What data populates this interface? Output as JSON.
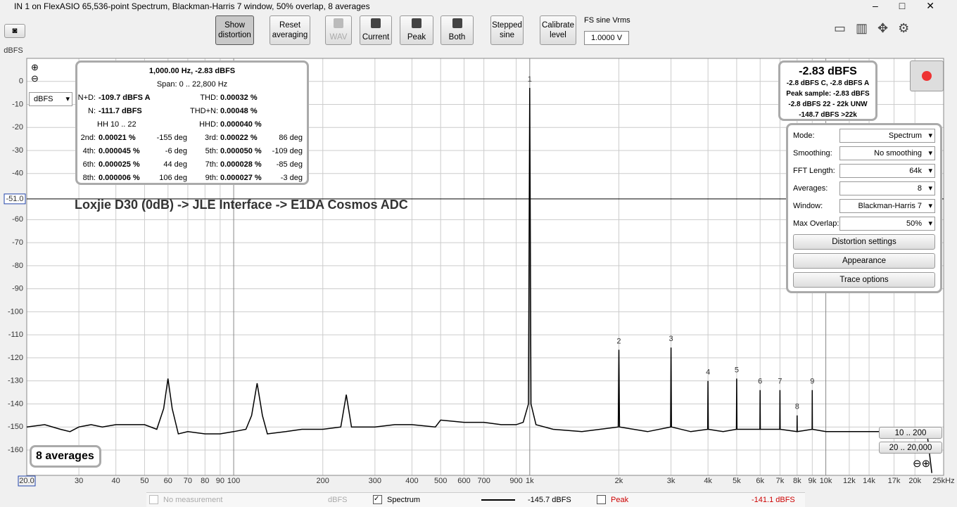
{
  "window": {
    "title": "IN 1 on FlexASIO 65,536-point Spectrum, Blackman-Harris 7 window, 50% overlap, 8 averages"
  },
  "toolbar": {
    "show_distortion": "Show distortion",
    "reset_averaging": "Reset averaging",
    "wav": "WAV",
    "current": "Current",
    "peak": "Peak",
    "both": "Both",
    "stepped_sine": "Stepped sine",
    "calibrate_level": "Calibrate level",
    "fs_label": "FS sine Vrms",
    "fs_value": "1.0000 V"
  },
  "units_dropdown": "dBFS",
  "info": {
    "cursor": "1,000.00 Hz, -2.83 dBFS",
    "span": "Span: 0 .. 22,800 Hz",
    "nd_label": "N+D:",
    "nd_value": "-109.7 dBFS A",
    "thd_label": "THD:",
    "thd_value": "0.00032 %",
    "n_label": "N:",
    "n_value": "-111.7 dBFS",
    "thdn_label": "THD+N:",
    "thdn_value": "0.00048 %",
    "hh_range": "HH 10 .. 22",
    "hhd_label": "HHD:",
    "hhd_value": "0.000040 %",
    "harmonics": [
      [
        "2nd:",
        "0.00021 %",
        "-155 deg",
        "3rd:",
        "0.00022 %",
        "86 deg"
      ],
      [
        "4th:",
        "0.000045 %",
        "-6 deg",
        "5th:",
        "0.000050 %",
        "-109 deg"
      ],
      [
        "6th:",
        "0.000025 %",
        "44 deg",
        "7th:",
        "0.000028 %",
        "-85 deg"
      ],
      [
        "8th:",
        "0.000006 %",
        "106 deg",
        "9th:",
        "0.000027 %",
        "-3 deg"
      ]
    ]
  },
  "level": {
    "main": "-2.83 dBFS",
    "lines": [
      "-2.8 dBFS C, -2.8 dBFS A",
      "Peak sample: -2.83 dBFS",
      "-2.8 dBFS 22 - 22k UNW",
      "-148.7 dBFS >22k"
    ]
  },
  "controls": {
    "rows": [
      [
        "Mode:",
        "Spectrum"
      ],
      [
        "Smoothing:",
        "No  smoothing"
      ],
      [
        "FFT Length:",
        "64k"
      ],
      [
        "Averages:",
        "8"
      ],
      [
        "Window:",
        "Blackman-Harris 7"
      ],
      [
        "Max Overlap:",
        "50%"
      ]
    ],
    "buttons": [
      "Distortion settings",
      "Appearance",
      "Trace options"
    ]
  },
  "averages_badge": "8 averages",
  "range_buttons": [
    "10 .. 200",
    "20 .. 20,000"
  ],
  "status": {
    "no_measurement": "No measurement",
    "no_measurement_unit": "dBFS",
    "spectrum_value": "-145.7 dBFS",
    "peak": "Peak",
    "peak_value": "-141.1 dBFS"
  },
  "chart_data": {
    "type": "line",
    "ylabel": "dBFS",
    "annotation": "Loxjie D30 (0dB) -> JLE Interface -> E1DA Cosmos ADC",
    "log_x": true,
    "grid": true,
    "xlim": [
      20,
      25000
    ],
    "ylim": [
      -171,
      10
    ],
    "yticks": [
      0,
      -10,
      -20,
      -30,
      -40,
      -60,
      -70,
      -80,
      -90,
      -100,
      -110,
      -120,
      -130,
      -140,
      -150,
      -160
    ],
    "xticks": [
      {
        "value": 20,
        "label": "20.0"
      },
      30,
      40,
      50,
      60,
      70,
      80,
      90,
      100,
      200,
      300,
      400,
      500,
      600,
      700,
      {
        "value": 900,
        "label": "900"
      },
      {
        "value": 1000,
        "label": "1k"
      },
      {
        "value": 2000,
        "label": "2k"
      },
      {
        "value": 3000,
        "label": "3k"
      },
      {
        "value": 4000,
        "label": "4k"
      },
      {
        "value": 5000,
        "label": "5k"
      },
      {
        "value": 6000,
        "label": "6k"
      },
      {
        "value": 7000,
        "label": "7k"
      },
      {
        "value": 8000,
        "label": "8k"
      },
      {
        "value": 9000,
        "label": "9k"
      },
      {
        "value": 10000,
        "label": "10k"
      },
      {
        "value": 12000,
        "label": "12k"
      },
      {
        "value": 14000,
        "label": "14k"
      },
      {
        "value": 17000,
        "label": "17k"
      },
      {
        "value": 20000,
        "label": "20k"
      },
      {
        "value": 25000,
        "label": "25kHz"
      }
    ],
    "cursor_y": {
      "value": -51.0,
      "label": "-51.0"
    },
    "x": [
      20,
      23,
      26,
      28,
      30,
      33,
      36,
      40,
      45,
      50,
      55,
      58,
      60,
      62,
      65,
      70,
      80,
      90,
      100,
      110,
      115,
      120,
      125,
      130,
      150,
      170,
      200,
      230,
      240,
      250,
      300,
      350,
      400,
      480,
      500,
      600,
      700,
      800,
      900,
      950,
      990,
      1000,
      1010,
      1050,
      1200,
      1500,
      1990,
      2000,
      2010,
      2500,
      2990,
      3000,
      3010,
      3500,
      3990,
      4000,
      4010,
      4500,
      4990,
      5000,
      5010,
      5990,
      6000,
      6010,
      6990,
      7000,
      7010,
      7990,
      8000,
      8010,
      8990,
      9000,
      9010,
      10000,
      12000,
      15000,
      20000,
      22000,
      22800
    ],
    "series": [
      {
        "name": "Spectrum",
        "color": "#000000",
        "values": [
          -150,
          -149,
          -151,
          -152,
          -150,
          -149,
          -150,
          -149,
          -149,
          -149,
          -151,
          -142,
          -129,
          -142,
          -153,
          -152,
          -153,
          -153,
          -152,
          -151,
          -145,
          -131,
          -145,
          -153,
          -152,
          -151,
          -151,
          -150,
          -136,
          -150,
          -150,
          -149,
          -149,
          -150,
          -147,
          -148,
          -148,
          -149,
          -149,
          -148,
          -140,
          -2.83,
          -140,
          -149,
          -151,
          -152,
          -150,
          -116.5,
          -150,
          -152,
          -150,
          -115.5,
          -150,
          -152,
          -151,
          -130,
          -151,
          -152,
          -151,
          -129,
          -151,
          -151,
          -134,
          -151,
          -151,
          -134,
          -151,
          -152,
          -145,
          -152,
          -151,
          -134,
          -151,
          -152,
          -152,
          -152,
          -151,
          -153,
          -170
        ]
      }
    ],
    "harmonics": [
      {
        "n": 1,
        "x": 1000,
        "y": -2.83
      },
      {
        "n": 2,
        "x": 2000,
        "y": -116.5
      },
      {
        "n": 3,
        "x": 3000,
        "y": -115.5
      },
      {
        "n": 4,
        "x": 4000,
        "y": -130
      },
      {
        "n": 5,
        "x": 5000,
        "y": -129
      },
      {
        "n": 6,
        "x": 6000,
        "y": -134
      },
      {
        "n": 7,
        "x": 7000,
        "y": -134
      },
      {
        "n": 8,
        "x": 8000,
        "y": -145
      },
      {
        "n": 9,
        "x": 9000,
        "y": -134
      }
    ]
  }
}
